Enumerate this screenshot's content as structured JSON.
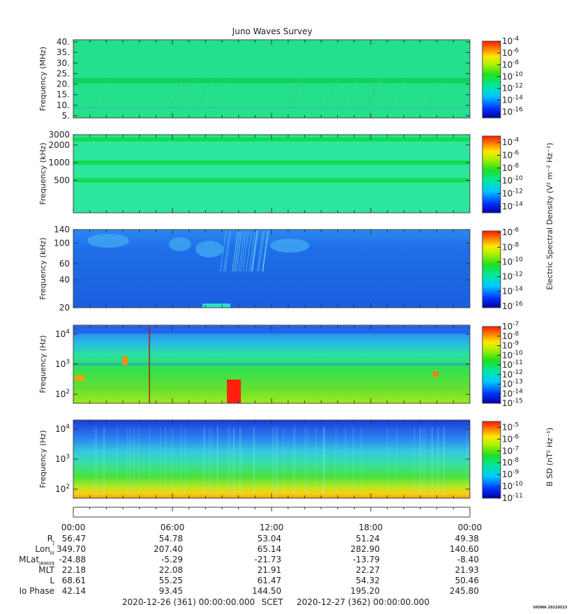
{
  "title": "Juno Waves Survey",
  "watermark": "UIOWA 20210523",
  "panels": [
    {
      "id": "hfr-high",
      "ylabel": "Frequency (MHz)",
      "yscale": "linear",
      "ylim": [
        4,
        41
      ],
      "yticks": [
        {
          "v": 5,
          "label": "5."
        },
        {
          "v": 10,
          "label": "10."
        },
        {
          "v": 15,
          "label": "15."
        },
        {
          "v": 20,
          "label": "20."
        },
        {
          "v": 25,
          "label": "25."
        },
        {
          "v": 30,
          "label": "30."
        },
        {
          "v": 35,
          "label": "35."
        },
        {
          "v": 40,
          "label": "40."
        }
      ],
      "cbar": {
        "min": -17,
        "max": -4,
        "labels": [
          -4,
          -6,
          -8,
          -10,
          -12,
          -14,
          -16
        ]
      },
      "bg": "#22e08c"
    },
    {
      "id": "hfr-low",
      "ylabel": "Frequency (kHz)",
      "yscale": "log",
      "ylim": [
        140,
        3000
      ],
      "yticks": [
        {
          "v": 500,
          "label": "500"
        },
        {
          "v": 1000,
          "label": "1000"
        },
        {
          "v": 2000,
          "label": "2000"
        },
        {
          "v": 3000,
          "label": "3000"
        }
      ],
      "cbar": {
        "min": -15,
        "max": -3,
        "labels": [
          -4,
          -6,
          -8,
          -10,
          -12,
          -14
        ]
      },
      "bg": "#2ce6a0"
    },
    {
      "id": "lfr-high",
      "ylabel": "Frequency (kHz)",
      "yscale": "log",
      "ylim": [
        20,
        140
      ],
      "yticks": [
        {
          "v": 20,
          "label": "20"
        },
        {
          "v": 40,
          "label": "40"
        },
        {
          "v": 60,
          "label": "60"
        },
        {
          "v": 100,
          "label": "100"
        },
        {
          "v": 140,
          "label": "140"
        }
      ],
      "cbar": {
        "min": -16.2,
        "max": -5.8,
        "labels": [
          -6,
          -8,
          -10,
          -12,
          -14,
          -16
        ]
      },
      "bg": "#1b6fe6"
    },
    {
      "id": "lfr-low",
      "ylabel": "Frequency (Hz)",
      "yscale": "log",
      "ylim": [
        50,
        20000
      ],
      "yticks": [
        {
          "v": 100,
          "label": "10",
          "sup": "2"
        },
        {
          "v": 1000,
          "label": "10",
          "sup": "3"
        },
        {
          "v": 10000,
          "label": "10",
          "sup": "4"
        }
      ],
      "cbar": {
        "min": -15,
        "max": -7,
        "labels": [
          -7,
          -8,
          -9,
          -10,
          -11,
          -12,
          -13,
          -14,
          -15
        ]
      },
      "bg": "#3ad24a"
    },
    {
      "id": "magnetic",
      "ylabel": "Frequency (Hz)",
      "yscale": "log",
      "ylim": [
        50,
        20000
      ],
      "yticks": [
        {
          "v": 100,
          "label": "10",
          "sup": "2"
        },
        {
          "v": 1000,
          "label": "10",
          "sup": "3"
        },
        {
          "v": 10000,
          "label": "10",
          "sup": "4"
        }
      ],
      "cbar": {
        "min": -11,
        "max": -4.5,
        "labels": [
          -5,
          -6,
          -7,
          -8,
          -9,
          -10,
          -11
        ]
      },
      "bg": "#2fd0c0"
    }
  ],
  "cbar_titles": {
    "electric": "Electric Spectral Density (V² m⁻² Hz⁻¹)",
    "magnetic": "B SD (nT² Hz⁻¹)"
  },
  "time_labels": [
    "00:00",
    "06:00",
    "12:00",
    "18:00",
    "00:00"
  ],
  "ephemeris": [
    {
      "label": "R",
      "sub": "J",
      "values": [
        "56.47",
        "54.78",
        "53.04",
        "51.24",
        "49.38"
      ]
    },
    {
      "label": "Lon",
      "sub": "III",
      "values": [
        "349.70",
        "207.40",
        "65.14",
        "282.90",
        "140.60"
      ]
    },
    {
      "label": "MLat",
      "sub": "JRM09",
      "values": [
        "-24.88",
        "-5.29",
        "-21.73",
        "-13.79",
        "-8.40"
      ]
    },
    {
      "label": "MLT",
      "sub": "",
      "values": [
        "22.18",
        "22.08",
        "21.91",
        "22.27",
        "21.93"
      ]
    },
    {
      "label": "L",
      "sub": "",
      "values": [
        "68.61",
        "55.25",
        "61.47",
        "54.32",
        "50.46"
      ]
    },
    {
      "label": "Io Phase",
      "sub": "",
      "values": [
        "42.14",
        "93.45",
        "144.50",
        "195.20",
        "245.80"
      ]
    }
  ],
  "footer": {
    "start": "2020-12-26 (361) 00:00:00.000",
    "mid": "SCET",
    "end": "2020-12-27 (362) 00:00:00.000"
  },
  "chart_data": {
    "type": "heatmap",
    "title": "Juno Waves Survey",
    "x_range": [
      "2020-12-26 00:00",
      "2020-12-27 00:00"
    ],
    "x_ticks": [
      "00:00",
      "06:00",
      "12:00",
      "18:00",
      "00:00"
    ],
    "panels": [
      {
        "ylabel": "Frequency (MHz)",
        "ylim": [
          5,
          40
        ],
        "scale": "linear",
        "colorbar_range_log10": [
          -16,
          -4
        ]
      },
      {
        "ylabel": "Frequency (kHz)",
        "ylim": [
          140,
          3000
        ],
        "scale": "log",
        "colorbar_range_log10": [
          -14,
          -4
        ]
      },
      {
        "ylabel": "Frequency (kHz)",
        "ylim": [
          20,
          140
        ],
        "scale": "log",
        "colorbar_range_log10": [
          -16,
          -6
        ]
      },
      {
        "ylabel": "Frequency (Hz)",
        "ylim": [
          50,
          20000
        ],
        "scale": "log",
        "colorbar_range_log10": [
          -15,
          -7
        ]
      },
      {
        "ylabel": "Frequency (Hz)",
        "ylim": [
          50,
          20000
        ],
        "scale": "log",
        "colorbar_range_log10": [
          -11,
          -5
        ]
      }
    ]
  }
}
